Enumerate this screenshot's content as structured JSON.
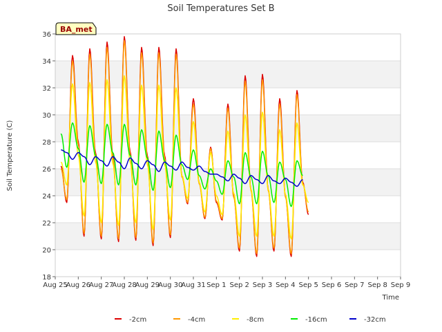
{
  "chart_data": {
    "type": "line",
    "title": "Soil Temperatures Set B",
    "xlabel": "Time",
    "ylabel": "Soil Temperature (C)",
    "station_badge": "BA_met",
    "ylim": [
      18,
      36
    ],
    "yticks": [
      18,
      20,
      22,
      24,
      26,
      28,
      30,
      32,
      34,
      36
    ],
    "xlim_days": [
      0,
      15
    ],
    "xticks": [
      "Aug 25",
      "Aug 26",
      "Aug 27",
      "Aug 28",
      "Aug 29",
      "Aug 30",
      "Aug 31",
      "Sep 1",
      "Sep 2",
      "Sep 3",
      "Sep 4",
      "Sep 5",
      "Sep 6",
      "Sep 7",
      "Sep 8",
      "Sep 9"
    ],
    "grid": true,
    "legend_position": "bottom",
    "x": [
      "Aug 25 06:00",
      "Aug 25 12:00",
      "Aug 25 18:00",
      "Aug 26 00:00",
      "Aug 26 06:00",
      "Aug 26 12:00",
      "Aug 26 18:00",
      "Aug 27 00:00",
      "Aug 27 06:00",
      "Aug 27 12:00",
      "Aug 27 18:00",
      "Aug 28 00:00",
      "Aug 28 06:00",
      "Aug 28 12:00",
      "Aug 28 18:00",
      "Aug 29 00:00",
      "Aug 29 06:00",
      "Aug 29 12:00",
      "Aug 29 18:00",
      "Aug 30 00:00",
      "Aug 30 06:00",
      "Aug 30 12:00",
      "Aug 30 18:00",
      "Aug 31 00:00",
      "Aug 31 06:00",
      "Aug 31 12:00",
      "Aug 31 18:00",
      "Sep 1 00:00",
      "Sep 1 06:00",
      "Sep 1 12:00",
      "Sep 1 18:00",
      "Sep 2 00:00",
      "Sep 2 06:00",
      "Sep 2 12:00",
      "Sep 2 18:00",
      "Sep 3 00:00",
      "Sep 3 06:00",
      "Sep 3 12:00",
      "Sep 3 18:00",
      "Sep 4 00:00",
      "Sep 4 06:00",
      "Sep 4 12:00",
      "Sep 4 18:00",
      "Sep 5 00:00",
      "Sep 5 06:00",
      "Sep 5 12:00",
      "Sep 5 18:00",
      "Sep 6 00:00",
      "Sep 6 06:00",
      "Sep 6 12:00",
      "Sep 6 18:00",
      "Sep 7 00:00",
      "Sep 7 06:00",
      "Sep 7 12:00",
      "Sep 7 18:00",
      "Sep 8 00:00",
      "Sep 8 06:00",
      "Sep 8 12:00",
      "Sep 8 18:00"
    ],
    "series": [
      {
        "name": "-2cm",
        "color": "#dd0000",
        "values": [
          26.2,
          23.5,
          34.4,
          28.0,
          21.0,
          34.9,
          27.2,
          20.8,
          35.4,
          27.0,
          20.6,
          35.8,
          27.3,
          20.7,
          35.0,
          27.0,
          20.3,
          35.0,
          27.0,
          20.9,
          34.9,
          25.5,
          23.4,
          31.2,
          25.0,
          22.3,
          27.6,
          23.5,
          22.2,
          30.8,
          24.0,
          19.9,
          32.9,
          24.5,
          19.5,
          33.0,
          24.5,
          19.9,
          31.2,
          24.0,
          19.5,
          31.8,
          25.0,
          22.6,
          null,
          null,
          null,
          null,
          null,
          null,
          null,
          null,
          null,
          null,
          null,
          null,
          null,
          null,
          null
        ]
      },
      {
        "name": "-4cm",
        "color": "#ff9900",
        "values": [
          26.0,
          23.7,
          34.0,
          27.8,
          21.2,
          34.5,
          27.0,
          21.0,
          35.0,
          26.8,
          20.8,
          35.5,
          27.1,
          20.9,
          34.6,
          26.8,
          20.5,
          34.6,
          26.8,
          21.1,
          34.5,
          25.4,
          23.5,
          30.8,
          24.9,
          22.4,
          27.5,
          23.6,
          22.3,
          30.5,
          23.9,
          20.1,
          32.5,
          24.4,
          19.7,
          32.6,
          24.4,
          20.1,
          30.8,
          23.9,
          19.7,
          31.5,
          24.9,
          22.8,
          null,
          null,
          null,
          null,
          null,
          null,
          null,
          null,
          null,
          null,
          null,
          null,
          null,
          null,
          null
        ]
      },
      {
        "name": "-8cm",
        "color": "#ffee00",
        "values": [
          26.5,
          24.8,
          32.3,
          27.0,
          22.5,
          32.4,
          26.5,
          22.0,
          32.6,
          26.4,
          21.8,
          32.9,
          26.5,
          22.0,
          32.2,
          26.3,
          21.5,
          32.2,
          26.3,
          22.2,
          32.0,
          25.5,
          23.8,
          29.5,
          25.0,
          22.8,
          27.2,
          24.0,
          22.6,
          28.8,
          24.2,
          21.0,
          30.0,
          24.5,
          21.0,
          30.2,
          24.5,
          21.0,
          28.9,
          24.1,
          20.8,
          29.4,
          24.8,
          23.5,
          null,
          null,
          null,
          null,
          null,
          null,
          null,
          null,
          null,
          null,
          null,
          null,
          null,
          null,
          null
        ]
      },
      {
        "name": "-16cm",
        "color": "#00ee00",
        "values": [
          28.6,
          26.1,
          29.4,
          27.5,
          25.0,
          29.2,
          27.0,
          24.9,
          29.3,
          27.2,
          24.8,
          29.3,
          27.0,
          24.8,
          28.9,
          26.8,
          24.4,
          28.8,
          26.6,
          24.6,
          28.5,
          26.3,
          25.2,
          27.4,
          25.5,
          24.5,
          26.0,
          25.1,
          24.1,
          26.6,
          25.4,
          23.4,
          27.2,
          25.4,
          23.4,
          27.3,
          25.5,
          23.5,
          26.5,
          25.2,
          23.2,
          26.6,
          25.5,
          null,
          null,
          null,
          null,
          null,
          null,
          null,
          null,
          null,
          null,
          null,
          null,
          null,
          null,
          null,
          null
        ]
      },
      {
        "name": "-32cm",
        "color": "#0000cc",
        "values": [
          27.4,
          27.2,
          26.7,
          27.2,
          26.9,
          26.3,
          26.9,
          26.6,
          26.2,
          26.9,
          26.5,
          26.0,
          26.8,
          26.4,
          26.0,
          26.6,
          26.3,
          25.8,
          26.5,
          26.2,
          25.9,
          26.5,
          26.1,
          25.9,
          26.2,
          25.8,
          25.6,
          25.6,
          25.4,
          25.1,
          25.6,
          25.3,
          24.9,
          25.5,
          25.2,
          24.9,
          25.5,
          25.1,
          24.9,
          25.3,
          25.0,
          24.7,
          25.2,
          null,
          null,
          null,
          null,
          null,
          null,
          null,
          null,
          null,
          null,
          null,
          null,
          null,
          null,
          null,
          null
        ]
      }
    ]
  }
}
